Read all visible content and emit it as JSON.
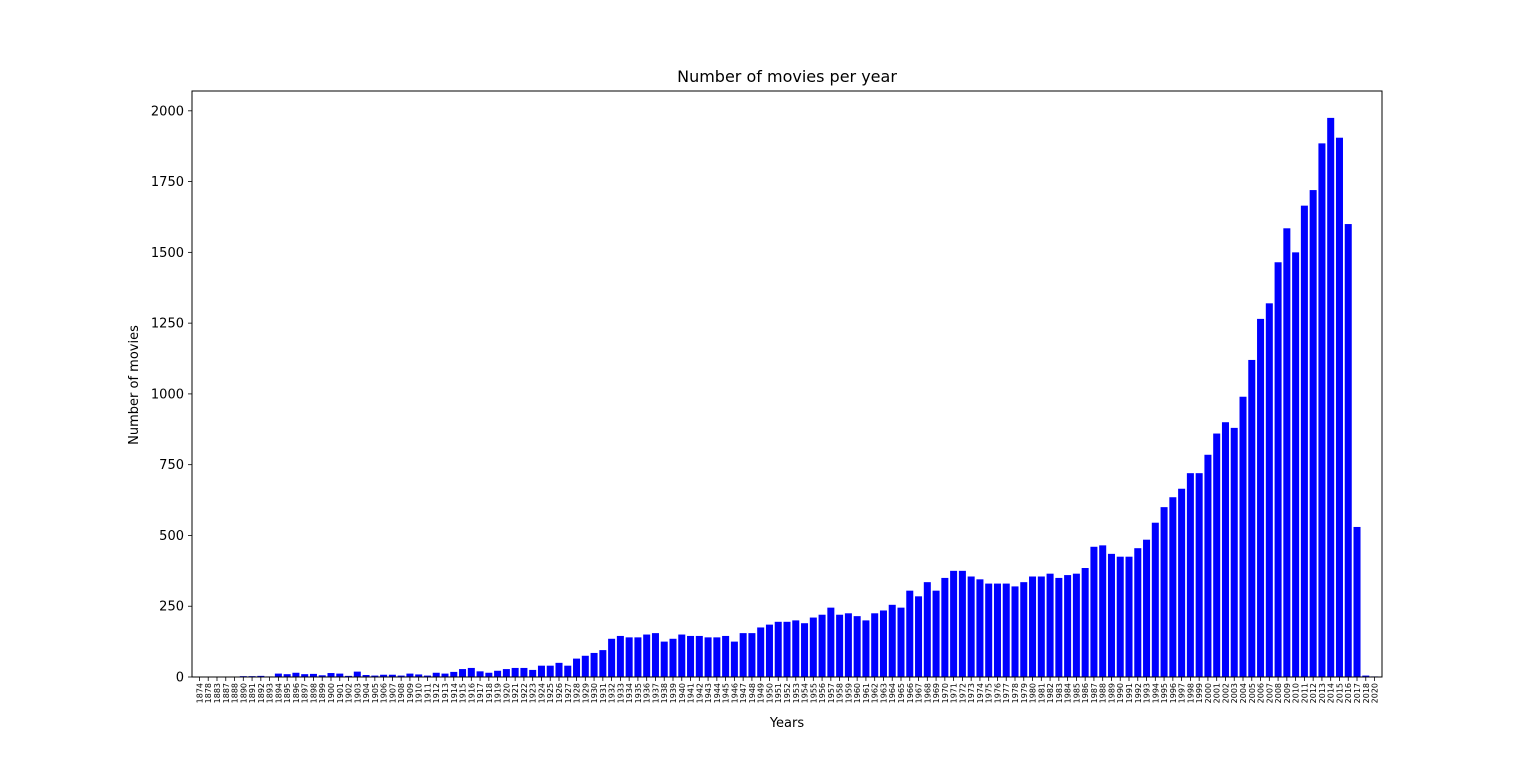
{
  "chart_data": {
    "type": "bar",
    "title": "Number of movies per year",
    "xlabel": "Years",
    "ylabel": "Number of movies",
    "ylim": [
      0,
      2070
    ],
    "yticks": [
      0,
      250,
      500,
      750,
      1000,
      1250,
      1500,
      1750,
      2000
    ],
    "bar_color": "#0000ff",
    "grid": false,
    "legend": "none",
    "categories": [
      "1874",
      "1878",
      "1883",
      "1887",
      "1888",
      "1890",
      "1891",
      "1892",
      "1893",
      "1894",
      "1895",
      "1896",
      "1897",
      "1898",
      "1899",
      "1900",
      "1901",
      "1902",
      "1903",
      "1904",
      "1905",
      "1906",
      "1907",
      "1908",
      "1909",
      "1910",
      "1911",
      "1912",
      "1913",
      "1914",
      "1915",
      "1916",
      "1917",
      "1918",
      "1919",
      "1920",
      "1921",
      "1922",
      "1923",
      "1924",
      "1925",
      "1926",
      "1927",
      "1928",
      "1929",
      "1930",
      "1931",
      "1932",
      "1933",
      "1934",
      "1935",
      "1936",
      "1937",
      "1938",
      "1939",
      "1940",
      "1941",
      "1942",
      "1943",
      "1944",
      "1945",
      "1946",
      "1947",
      "1948",
      "1949",
      "1950",
      "1951",
      "1952",
      "1953",
      "1954",
      "1955",
      "1956",
      "1957",
      "1958",
      "1959",
      "1960",
      "1961",
      "1962",
      "1963",
      "1964",
      "1965",
      "1966",
      "1967",
      "1968",
      "1969",
      "1970",
      "1971",
      "1972",
      "1973",
      "1974",
      "1975",
      "1976",
      "1977",
      "1978",
      "1979",
      "1980",
      "1981",
      "1982",
      "1983",
      "1984",
      "1985",
      "1986",
      "1987",
      "1988",
      "1989",
      "1990",
      "1991",
      "1992",
      "1993",
      "1994",
      "1995",
      "1996",
      "1997",
      "1998",
      "1999",
      "2000",
      "2001",
      "2002",
      "2003",
      "2004",
      "2005",
      "2006",
      "2007",
      "2008",
      "2009",
      "2010",
      "2011",
      "2012",
      "2013",
      "2014",
      "2015",
      "2016",
      "2017",
      "2018",
      "2020"
    ],
    "values": [
      1,
      1,
      1,
      1,
      1,
      3,
      3,
      4,
      2,
      12,
      10,
      15,
      10,
      11,
      6,
      14,
      12,
      4,
      19,
      7,
      5,
      8,
      8,
      5,
      12,
      9,
      5,
      15,
      12,
      18,
      28,
      32,
      20,
      15,
      22,
      28,
      32,
      32,
      25,
      40,
      40,
      50,
      40,
      65,
      75,
      85,
      95,
      135,
      145,
      140,
      140,
      150,
      155,
      125,
      135,
      150,
      145,
      145,
      140,
      140,
      145,
      125,
      155,
      155,
      175,
      185,
      195,
      195,
      200,
      190,
      210,
      220,
      245,
      220,
      225,
      215,
      200,
      225,
      235,
      255,
      245,
      305,
      285,
      335,
      305,
      350,
      375,
      375,
      355,
      345,
      330,
      330,
      330,
      320,
      335,
      355,
      355,
      365,
      350,
      360,
      365,
      385,
      460,
      465,
      435,
      425,
      425,
      455,
      485,
      545,
      600,
      635,
      665,
      720,
      720,
      785,
      860,
      900,
      880,
      990,
      1120,
      1265,
      1320,
      1465,
      1585,
      1500,
      1665,
      1720,
      1885,
      1975,
      1905,
      1600,
      530,
      5,
      2
    ]
  }
}
